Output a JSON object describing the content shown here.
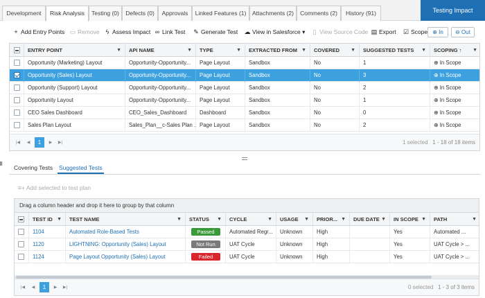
{
  "tabs": [
    {
      "label": "Development"
    },
    {
      "label": "Risk Analysis"
    },
    {
      "label": "Testing (0)"
    },
    {
      "label": "Defects (0)"
    },
    {
      "label": "Approvals"
    },
    {
      "label": "Linked Features (1)"
    },
    {
      "label": "Attachments (2)"
    },
    {
      "label": "Comments (2)"
    },
    {
      "label": "History (91)"
    }
  ],
  "testing_impact_label": "Testing Impact",
  "toolbar": {
    "add_entry_points": "Add Entry Points",
    "remove": "Remove",
    "assess_impact": "Assess Impact",
    "link_test": "Link Test",
    "generate_test": "Generate Test",
    "view_in_salesforce": "View in Salesforce",
    "view_source_code": "View Source Code",
    "export": "Export",
    "scope_label": "Scope:",
    "scope_in": "In",
    "scope_out": "Out"
  },
  "entry_grid": {
    "columns": [
      "ENTRY POINT",
      "API NAME",
      "TYPE",
      "EXTRACTED FROM",
      "COVERED",
      "SUGGESTED TESTS",
      "SCOPING"
    ],
    "sort_indicator": "↑",
    "rows": [
      {
        "entry_point": "Opportunity (Marketing) Layout",
        "api_name": "Opportunity-Opportunity...",
        "type": "Page Layout",
        "extracted_from": "Sandbox",
        "covered": "No",
        "suggested_tests": "1",
        "scoping": "In Scope",
        "selected": false
      },
      {
        "entry_point": "Opportunity (Sales) Layout",
        "api_name": "Opportunity-Opportunity...",
        "type": "Page Layout",
        "extracted_from": "Sandbox",
        "covered": "No",
        "suggested_tests": "3",
        "scoping": "In Scope",
        "selected": true
      },
      {
        "entry_point": "Opportunity (Support) Layout",
        "api_name": "Opportunity-Opportunity...",
        "type": "Page Layout",
        "extracted_from": "Sandbox",
        "covered": "No",
        "suggested_tests": "2",
        "scoping": "In Scope",
        "selected": false
      },
      {
        "entry_point": "Opportunity Layout",
        "api_name": "Opportunity-Opportunity...",
        "type": "Page Layout",
        "extracted_from": "Sandbox",
        "covered": "No",
        "suggested_tests": "1",
        "scoping": "In Scope",
        "selected": false
      },
      {
        "entry_point": "CEO Sales Dashboard",
        "api_name": "CEO_Sales_Dashboard",
        "type": "Dashboard",
        "extracted_from": "Sandbox",
        "covered": "No",
        "suggested_tests": "0",
        "scoping": "In Scope",
        "selected": false
      },
      {
        "entry_point": "Sales Plan Layout",
        "api_name": "Sales_Plan__c-Sales Plan ...",
        "type": "Page Layout",
        "extracted_from": "Sandbox",
        "covered": "No",
        "suggested_tests": "2",
        "scoping": "In Scope",
        "selected": false
      }
    ],
    "pager": {
      "page": "1",
      "selected": "1 selected",
      "range": "1 - 18 of 18 items"
    }
  },
  "subtabs": [
    {
      "label": "Covering Tests"
    },
    {
      "label": "Suggested Tests"
    }
  ],
  "add_to_plan": "Add selected to test plan",
  "tests_grid": {
    "group_hint": "Drag a column header and drop it here to group by that column",
    "columns": [
      "TEST ID",
      "TEST NAME",
      "STATUS",
      "CYCLE",
      "USAGE",
      "PRIOR...",
      "DUE DATE",
      "IN SCOPE",
      "PATH"
    ],
    "rows": [
      {
        "id": "1104",
        "name": "Automated Role-Based Tests",
        "status": "Passed",
        "status_color": "#3a9a3a",
        "cycle": "Automated Regr...",
        "usage": "Unknown",
        "priority": "High",
        "due_date": "",
        "in_scope": "Yes",
        "path": "Automated ..."
      },
      {
        "id": "1120",
        "name": "LIGHTNING: Opportunity (Sales) Layout",
        "status": "Not Run",
        "status_color": "#7a7a7a",
        "cycle": "UAT Cycle",
        "usage": "Unknown",
        "priority": "High",
        "due_date": "",
        "in_scope": "Yes",
        "path": "UAT Cycle > ..."
      },
      {
        "id": "1124",
        "name": "Page Layout Opportunity (Sales) Layout",
        "status": "Failed",
        "status_color": "#d9262c",
        "cycle": "UAT Cycle",
        "usage": "Unknown",
        "priority": "High",
        "due_date": "",
        "in_scope": "Yes",
        "path": "UAT Cycle > ..."
      }
    ],
    "pager": {
      "page": "1",
      "selected": "0 selected",
      "range": "1 - 3 of 3 items"
    }
  }
}
